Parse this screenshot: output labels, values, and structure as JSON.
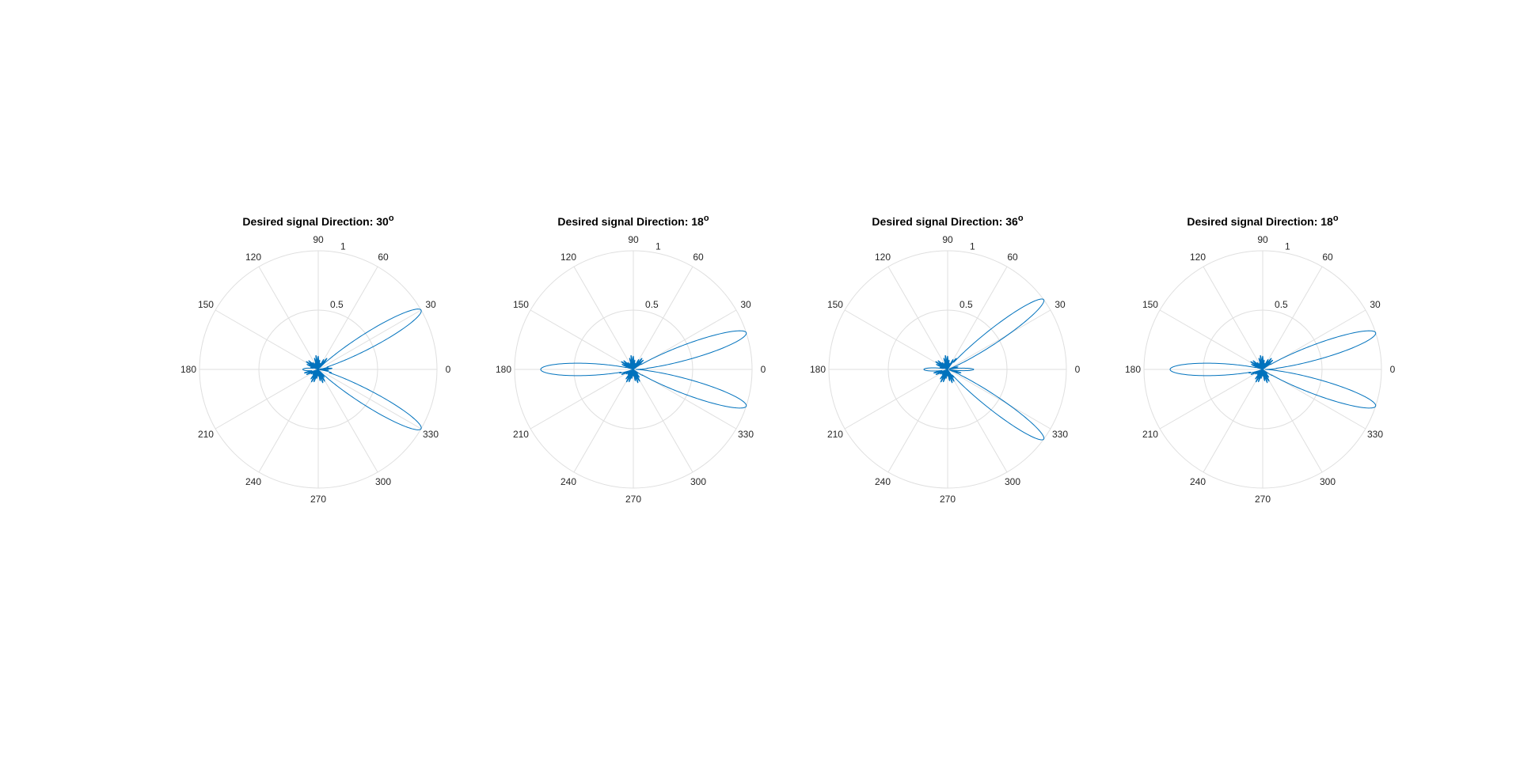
{
  "figure": {
    "panels": [
      {
        "title_main": "Desired signal Direction: 30",
        "title_sup": "o"
      },
      {
        "title_main": "Desired signal Direction: 18",
        "title_sup": "o"
      },
      {
        "title_main": "Desired signal Direction: 36",
        "title_sup": "o"
      },
      {
        "title_main": "Desired signal Direction: 18",
        "title_sup": "o"
      }
    ]
  },
  "chart_data": [
    {
      "type": "polar-line",
      "title": "Desired signal Direction: 30°",
      "theta_ticks": [
        "0",
        "30",
        "60",
        "90",
        "120",
        "150",
        "180",
        "210",
        "240",
        "270",
        "300",
        "330"
      ],
      "r_ticks": [
        "0.5",
        "1"
      ],
      "rlim": [
        0,
        1
      ],
      "grid": true,
      "series_color": "#0072bd",
      "lobes": [
        {
          "direction_deg": 30,
          "gain": 1.0,
          "beamwidth_deg": 14
        },
        {
          "direction_deg": -30,
          "gain": 1.0,
          "beamwidth_deg": 14
        },
        {
          "direction_deg": 180,
          "gain": 0.13,
          "beamwidth_deg": 18
        }
      ],
      "sidelobe_level": 0.12
    },
    {
      "type": "polar-line",
      "title": "Desired signal Direction: 18°",
      "theta_ticks": [
        "0",
        "30",
        "60",
        "90",
        "120",
        "150",
        "180",
        "210",
        "240",
        "270",
        "300",
        "330"
      ],
      "r_ticks": [
        "0.5",
        "1"
      ],
      "rlim": [
        0,
        1
      ],
      "grid": true,
      "series_color": "#0072bd",
      "lobes": [
        {
          "direction_deg": 18,
          "gain": 1.0,
          "beamwidth_deg": 14
        },
        {
          "direction_deg": -18,
          "gain": 1.0,
          "beamwidth_deg": 14
        },
        {
          "direction_deg": 180,
          "gain": 0.78,
          "beamwidth_deg": 14
        }
      ],
      "sidelobe_level": 0.12
    },
    {
      "type": "polar-line",
      "title": "Desired signal Direction: 36°",
      "theta_ticks": [
        "0",
        "30",
        "60",
        "90",
        "120",
        "150",
        "180",
        "210",
        "240",
        "270",
        "300",
        "330"
      ],
      "r_ticks": [
        "0.5",
        "1"
      ],
      "rlim": [
        0,
        1
      ],
      "grid": true,
      "series_color": "#0072bd",
      "lobes": [
        {
          "direction_deg": 36,
          "gain": 1.0,
          "beamwidth_deg": 13
        },
        {
          "direction_deg": -36,
          "gain": 1.0,
          "beamwidth_deg": 13
        },
        {
          "direction_deg": 180,
          "gain": 0.2,
          "beamwidth_deg": 14
        },
        {
          "direction_deg": 0,
          "gain": 0.22,
          "beamwidth_deg": 10
        }
      ],
      "sidelobe_level": 0.12
    },
    {
      "type": "polar-line",
      "title": "Desired signal Direction: 18°",
      "theta_ticks": [
        "0",
        "30",
        "60",
        "90",
        "120",
        "150",
        "180",
        "210",
        "240",
        "270",
        "300",
        "330"
      ],
      "r_ticks": [
        "0.5",
        "1"
      ],
      "rlim": [
        0,
        1
      ],
      "grid": true,
      "series_color": "#0072bd",
      "lobes": [
        {
          "direction_deg": 18,
          "gain": 1.0,
          "beamwidth_deg": 14
        },
        {
          "direction_deg": -18,
          "gain": 1.0,
          "beamwidth_deg": 14
        },
        {
          "direction_deg": 180,
          "gain": 0.78,
          "beamwidth_deg": 14
        }
      ],
      "sidelobe_level": 0.12
    }
  ]
}
